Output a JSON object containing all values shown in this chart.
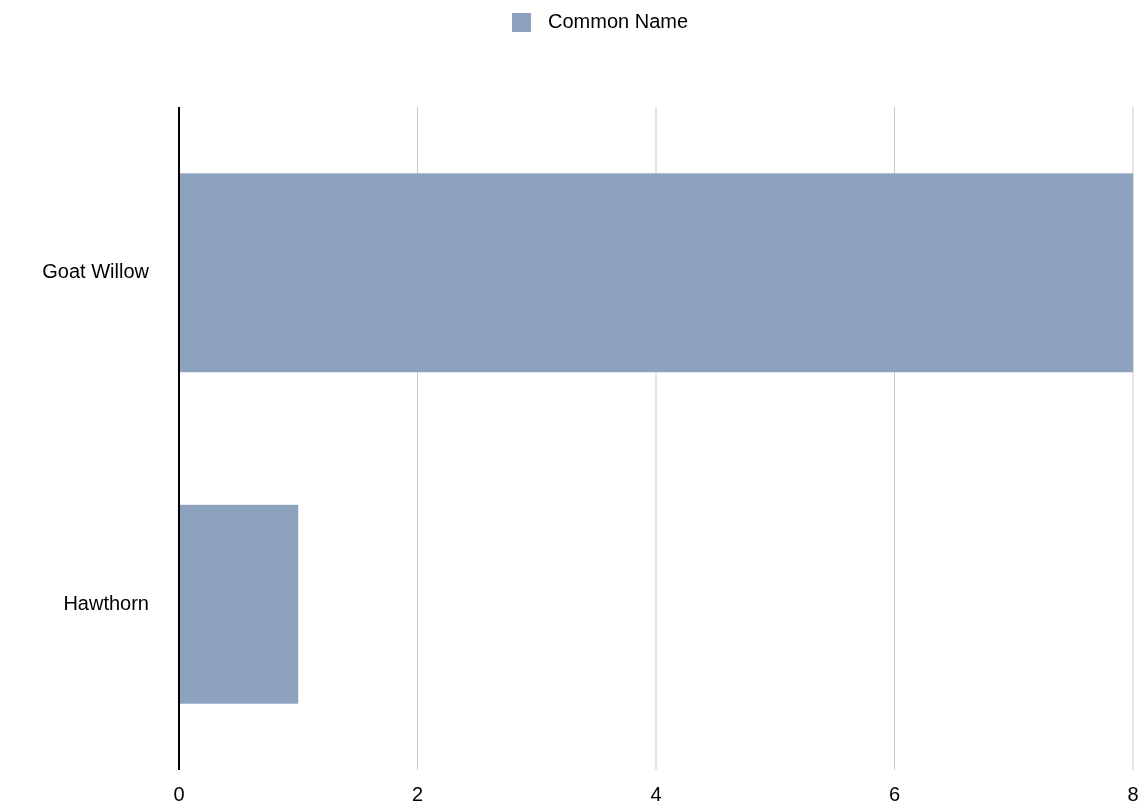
{
  "chart_data": {
    "type": "bar",
    "orientation": "horizontal",
    "categories": [
      "Goat Willow",
      "Hawthorn"
    ],
    "series": [
      {
        "name": "Common Name",
        "color": "#8ca2bd",
        "values": [
          8,
          1
        ]
      }
    ],
    "xlim": [
      0,
      8
    ],
    "xticks": [
      0,
      2,
      4,
      6,
      8
    ],
    "grid": "x",
    "legend": "top"
  }
}
